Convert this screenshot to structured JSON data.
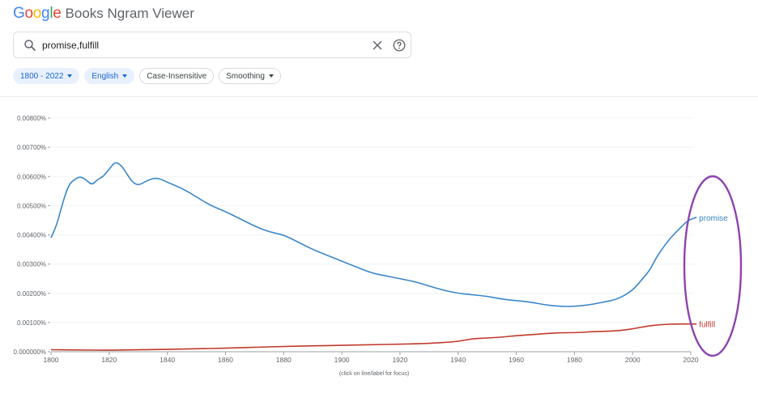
{
  "header": {
    "logo_letters": [
      {
        "ch": "G",
        "color": "#4285F4"
      },
      {
        "ch": "o",
        "color": "#EA4335"
      },
      {
        "ch": "o",
        "color": "#FBBC05"
      },
      {
        "ch": "g",
        "color": "#4285F4"
      },
      {
        "ch": "l",
        "color": "#34A853"
      },
      {
        "ch": "e",
        "color": "#EA4335"
      }
    ],
    "app_title": "Books Ngram Viewer"
  },
  "search": {
    "value": "promise,fulfill",
    "icons": [
      "search-icon",
      "close-icon",
      "help-icon"
    ]
  },
  "chips": [
    {
      "label": "1800 - 2022",
      "dropdown": true,
      "active": true
    },
    {
      "label": "English",
      "dropdown": true,
      "active": true
    },
    {
      "label": "Case-Insensitive",
      "dropdown": false,
      "active": false
    },
    {
      "label": "Smoothing",
      "dropdown": true,
      "active": false
    }
  ],
  "chart_data": {
    "type": "line",
    "xlim": [
      1800,
      2020
    ],
    "ylim": [
      0,
      0.008
    ],
    "x_ticks": [
      "1800",
      "1820",
      "1840",
      "1860",
      "1880",
      "1900",
      "1920",
      "1940",
      "1960",
      "1980",
      "2000",
      "2020"
    ],
    "y_ticks": [
      "0.000000%",
      "0.00100%",
      "0.00200%",
      "0.00300%",
      "0.00400%",
      "0.00500%",
      "0.00600%",
      "0.00700%",
      "0.00800%"
    ],
    "grid": true,
    "series": [
      {
        "name": "promise",
        "color": "#3a87c8",
        "x": [
          1800,
          1802,
          1804,
          1806,
          1808,
          1810,
          1812,
          1814,
          1816,
          1818,
          1820,
          1822,
          1824,
          1826,
          1828,
          1830,
          1832,
          1834,
          1836,
          1838,
          1840,
          1845,
          1850,
          1855,
          1860,
          1865,
          1870,
          1875,
          1880,
          1885,
          1890,
          1895,
          1900,
          1905,
          1910,
          1915,
          1920,
          1925,
          1930,
          1935,
          1940,
          1945,
          1950,
          1955,
          1960,
          1965,
          1970,
          1975,
          1980,
          1985,
          1990,
          1995,
          2000,
          2003,
          2006,
          2008,
          2010,
          2013,
          2016,
          2019,
          2022
        ],
        "y": [
          0.0039,
          0.00435,
          0.0051,
          0.0057,
          0.0059,
          0.006,
          0.0059,
          0.0057,
          0.0059,
          0.006,
          0.00625,
          0.0065,
          0.0064,
          0.0061,
          0.0058,
          0.0057,
          0.0058,
          0.0059,
          0.00595,
          0.0059,
          0.0058,
          0.0056,
          0.0053,
          0.005,
          0.0048,
          0.00455,
          0.0043,
          0.0041,
          0.004,
          0.00375,
          0.0035,
          0.0033,
          0.0031,
          0.0029,
          0.0027,
          0.0026,
          0.0025,
          0.0024,
          0.00225,
          0.0021,
          0.002,
          0.00195,
          0.0019,
          0.0018,
          0.00175,
          0.0017,
          0.0016,
          0.00155,
          0.00155,
          0.0016,
          0.0017,
          0.0018,
          0.0021,
          0.00245,
          0.0028,
          0.0032,
          0.0035,
          0.0039,
          0.0042,
          0.0045,
          0.0046
        ]
      },
      {
        "name": "fulfill",
        "color": "#c0392b",
        "x": [
          1800,
          1810,
          1820,
          1830,
          1840,
          1850,
          1860,
          1870,
          1880,
          1890,
          1900,
          1910,
          1920,
          1930,
          1940,
          1945,
          1950,
          1955,
          1960,
          1965,
          1970,
          1975,
          1980,
          1985,
          1990,
          1995,
          2000,
          2005,
          2010,
          2015,
          2020,
          2022
        ],
        "y": [
          7e-05,
          6e-05,
          5e-05,
          7e-05,
          8e-05,
          0.0001,
          0.00012,
          0.00015,
          0.00018,
          0.0002,
          0.00022,
          0.00024,
          0.00026,
          0.00028,
          0.00035,
          0.00045,
          0.00047,
          0.0005,
          0.00055,
          0.00058,
          0.00062,
          0.00065,
          0.00065,
          0.00068,
          0.0007,
          0.00072,
          0.00078,
          0.00088,
          0.00093,
          0.00095,
          0.00095,
          0.00095
        ]
      }
    ],
    "annotation": "circle around series labels at right end",
    "footer_hint": "(click on line/label for focus)"
  }
}
